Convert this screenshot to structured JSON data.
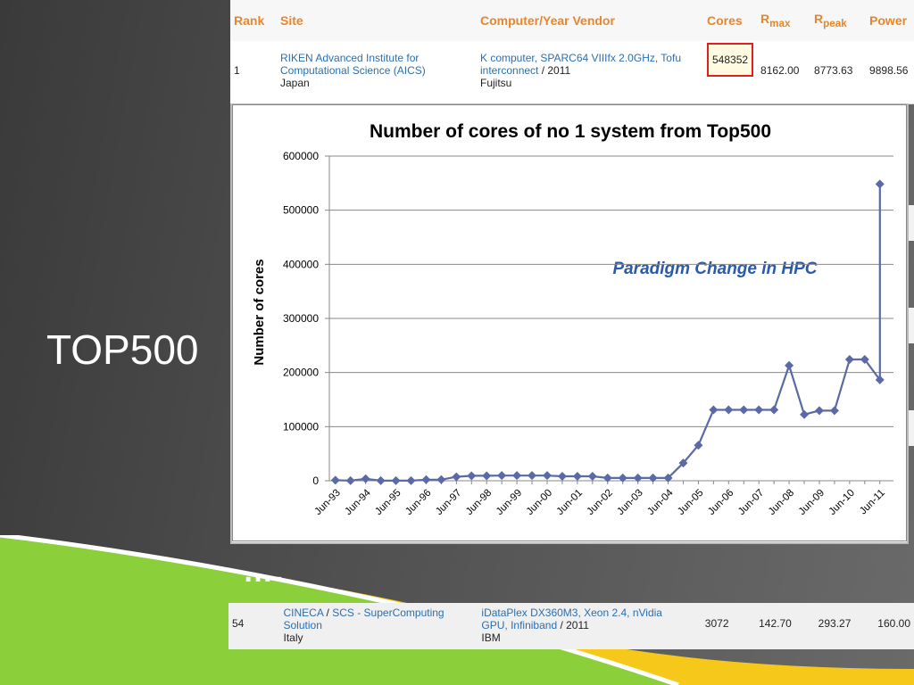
{
  "slide": {
    "title": "TOP500",
    "ellipsis": "…."
  },
  "top_table": {
    "headers": {
      "rank": "Rank",
      "site": "Site",
      "computer": "Computer/Year Vendor",
      "cores": "Cores",
      "rmax": "R",
      "rmax_sub": "max",
      "rpeak": "R",
      "rpeak_sub": "peak",
      "power": "Power"
    },
    "row": {
      "rank": "1",
      "site_line1": "RIKEN Advanced Institute for",
      "site_line2": "Computational Science (AICS)",
      "country": "Japan",
      "computer_line1": "K computer, SPARC64 VIIIfx 2.0GHz, Tofu",
      "computer_line2_link": "interconnect",
      "computer_line2_rest": " / 2011",
      "vendor": "Fujitsu",
      "cores": "548352",
      "rmax": "8162.00",
      "rpeak": "8773.63",
      "power": "9898.56"
    }
  },
  "bottom_table": {
    "rank": "54",
    "site_link1": "CINECA",
    "site_sep": " / ",
    "site_link2": "SCS - SuperComputing",
    "site_line2": "Solution",
    "country": "Italy",
    "computer_line1": "iDataPlex DX360M3, Xeon 2.4, nVidia",
    "computer_line2_link": "GPU, Infiniband",
    "computer_line2_rest": " / 2011",
    "vendor": "IBM",
    "cores": "3072",
    "rmax": "142.70",
    "rpeak": "293.27",
    "power": "160.00"
  },
  "colors": {
    "series": "#5b6aa6",
    "annotation": "#2a5aa8",
    "header_orange": "#e8862a",
    "green": "#8bd03a",
    "yellow": "#f6c81a"
  },
  "chart_data": {
    "type": "line",
    "title": "Number of cores of no 1 system from Top500",
    "ylabel": "Number of cores",
    "xlabel": "",
    "ylim": [
      0,
      600000
    ],
    "yticks": [
      0,
      100000,
      200000,
      300000,
      400000,
      500000,
      600000
    ],
    "xtick_labels": [
      "Jun-93",
      "Jun-94",
      "Jun-95",
      "Jun-96",
      "Jun-97",
      "Jun-98",
      "Jun-99",
      "Jun-00",
      "Jun-01",
      "Jun-02",
      "Jun-03",
      "Jun-04",
      "Jun-05",
      "Jun-06",
      "Jun-07",
      "Jun-08",
      "Jun-09",
      "Jun-10",
      "Jun-11"
    ],
    "annotation": "Paradigm Change in HPC",
    "grid": true,
    "marker": "diamond",
    "series": [
      {
        "x": [
          "Jun-93",
          "Nov-93",
          "Jun-94",
          "Nov-94",
          "Jun-95",
          "Nov-95",
          "Jun-96",
          "Nov-96",
          "Jun-97",
          "Nov-97",
          "Jun-98",
          "Nov-98",
          "Jun-99",
          "Nov-99",
          "Jun-00",
          "Nov-00",
          "Jun-01",
          "Nov-01",
          "Jun-02",
          "Nov-02",
          "Jun-03",
          "Nov-03",
          "Jun-04",
          "Nov-04",
          "Jun-05",
          "Nov-05",
          "Jun-06",
          "Nov-06",
          "Jun-07",
          "Nov-07",
          "Jun-08",
          "Nov-08",
          "Jun-09",
          "Nov-09",
          "Jun-10",
          "Nov-10",
          "Jun-11"
        ],
        "values": [
          1024,
          140,
          3680,
          140,
          140,
          140,
          2048,
          2048,
          7264,
          9152,
          9152,
          9632,
          9632,
          9632,
          9632,
          8192,
          8192,
          8192,
          5120,
          5120,
          5120,
          5120,
          5120,
          32768,
          65536,
          131072,
          131072,
          131072,
          131072,
          131072,
          212992,
          122400,
          129600,
          129600,
          224162,
          224162,
          186368
        ]
      },
      {
        "x": [
          "Jun-11"
        ],
        "values": [
          548352
        ]
      }
    ]
  }
}
